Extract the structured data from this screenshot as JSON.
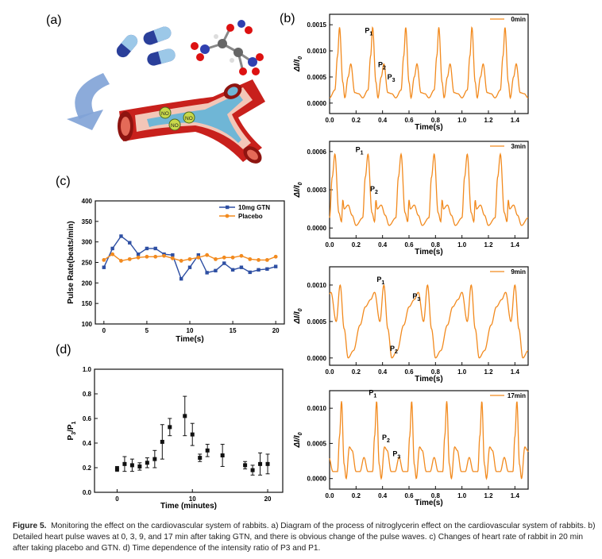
{
  "panel_labels": {
    "a": "(a)",
    "b": "(b)",
    "c": "(c)",
    "d": "(d)"
  },
  "illustration": {
    "no_labels": [
      "NO",
      "NO",
      "NO"
    ]
  },
  "caption": {
    "label": "Figure 5.",
    "text": "Monitoring the effect on the cardiovascular system of rabbits. a) Diagram of the process of nitroglycerin effect on the cardiovascular system of rabbits. b) Detailed heart pulse waves at 0, 3, 9, and 17 min after taking GTN, and there is obvious change of the pulse waves. c) Changes of heart rate of rabbit in 20 min after taking placebo and GTN. d) Time dependence of the intensity ratio of P3 and P1."
  },
  "colors": {
    "orange": "#f28a1e",
    "blue": "#2e4fa3",
    "black": "#111111"
  },
  "chart_data": [
    {
      "id": "c",
      "type": "line",
      "xlabel": "Time(s)",
      "ylabel": "Pulse Rate(beats/min)",
      "xlim": [
        -1,
        21
      ],
      "ylim": [
        100,
        400
      ],
      "xticks": [
        0,
        5,
        10,
        15,
        20
      ],
      "yticks": [
        100,
        150,
        200,
        250,
        300,
        350,
        400
      ],
      "legend_position": "top-right",
      "series": [
        {
          "name": "10mg GTN",
          "color": "#2e4fa3",
          "marker": "square",
          "x": [
            0,
            1,
            2,
            3,
            4,
            5,
            6,
            7,
            8,
            9,
            10,
            11,
            12,
            13,
            14,
            15,
            16,
            17,
            18,
            19,
            20
          ],
          "y": [
            238,
            284,
            314,
            298,
            270,
            284,
            284,
            270,
            268,
            210,
            238,
            268,
            225,
            230,
            248,
            232,
            238,
            226,
            232,
            234,
            240
          ]
        },
        {
          "name": "Placebo",
          "color": "#f28a1e",
          "marker": "circle",
          "x": [
            0,
            1,
            2,
            3,
            4,
            5,
            6,
            7,
            8,
            9,
            10,
            11,
            12,
            13,
            14,
            15,
            16,
            17,
            18,
            19,
            20
          ],
          "y": [
            256,
            270,
            254,
            258,
            262,
            264,
            264,
            266,
            260,
            254,
            258,
            262,
            268,
            258,
            262,
            262,
            266,
            258,
            256,
            256,
            264
          ]
        }
      ]
    },
    {
      "id": "d",
      "type": "scatter",
      "xlabel": "Time (minutes)",
      "ylabel": "P3/P1",
      "xlim": [
        -3,
        22
      ],
      "ylim": [
        0,
        1.0
      ],
      "xticks": [
        0,
        10,
        20
      ],
      "yticks": [
        0.0,
        0.2,
        0.4,
        0.6,
        0.8,
        1.0
      ],
      "series": [
        {
          "color": "#111111",
          "marker": "square",
          "x": [
            0,
            1,
            2,
            3,
            4,
            5,
            6,
            7,
            9,
            10,
            11,
            12,
            14,
            17,
            18,
            19,
            20
          ],
          "y": [
            0.19,
            0.23,
            0.22,
            0.21,
            0.24,
            0.27,
            0.41,
            0.53,
            0.62,
            0.47,
            0.28,
            0.34,
            0.3,
            0.22,
            0.18,
            0.23,
            0.23
          ],
          "err": [
            0.02,
            0.06,
            0.05,
            0.03,
            0.04,
            0.07,
            0.14,
            0.07,
            0.16,
            0.09,
            0.03,
            0.05,
            0.09,
            0.03,
            0.04,
            0.09,
            0.08
          ]
        }
      ]
    },
    {
      "id": "b0",
      "type": "line",
      "legend": "0min",
      "xlabel": "Time(s)",
      "ylabel": "ΔI/I0",
      "xlim": [
        0,
        1.5
      ],
      "ylim": [
        -0.0002,
        0.0017
      ],
      "xticks": [
        0.0,
        0.2,
        0.4,
        0.6,
        0.8,
        1.0,
        1.2,
        1.4
      ],
      "yticks": [
        0.0,
        0.0005,
        0.001,
        0.0015
      ],
      "ytick_labels": [
        "0.0000",
        "0.0005",
        "0.0010",
        "0.0015"
      ],
      "peaks": [
        {
          "label": "P1",
          "x": 0.29,
          "y": 0.00125
        },
        {
          "label": "P2",
          "x": 0.39,
          "y": 0.0006
        },
        {
          "label": "P3",
          "x": 0.46,
          "y": 0.00036
        }
      ],
      "period": 0.25,
      "first_beat": 0.04,
      "beat_shape": [
        [
          0,
          0.00025
        ],
        [
          0.02,
          0.0009
        ],
        [
          0.035,
          0.00145
        ],
        [
          0.06,
          0.0004
        ],
        [
          0.075,
          0.0001
        ],
        [
          0.1,
          0.0005
        ],
        [
          0.12,
          0.00075
        ],
        [
          0.15,
          0.0002
        ],
        [
          0.18,
          0.00018
        ],
        [
          0.21,
          0.0001
        ],
        [
          0.25,
          0.00025
        ]
      ]
    },
    {
      "id": "b3",
      "type": "line",
      "legend": "3min",
      "xlabel": "Time(s)",
      "ylabel": "ΔI/I0",
      "xlim": [
        0,
        1.5
      ],
      "ylim": [
        -8e-05,
        0.00068
      ],
      "xticks": [
        0.0,
        0.2,
        0.4,
        0.6,
        0.8,
        1.0,
        1.2,
        1.4
      ],
      "yticks": [
        0.0,
        0.0003,
        0.0006
      ],
      "ytick_labels": [
        "0.0000",
        "0.0003",
        "0.0006"
      ],
      "peaks": [
        {
          "label": "P1",
          "x": 0.22,
          "y": 0.00056
        },
        {
          "label": "P2",
          "x": 0.33,
          "y": 0.00025
        }
      ],
      "period": 0.25,
      "first_beat": 0.0,
      "beat_shape": [
        [
          0,
          8e-05
        ],
        [
          0.02,
          0.0004
        ],
        [
          0.04,
          0.00058
        ],
        [
          0.07,
          0.00012
        ],
        [
          0.09,
          5e-05
        ],
        [
          0.1,
          0.00022
        ],
        [
          0.11,
          0.00015
        ],
        [
          0.14,
          0.00018
        ],
        [
          0.17,
          0.0001
        ],
        [
          0.2,
          2e-05
        ],
        [
          0.25,
          8e-05
        ]
      ]
    },
    {
      "id": "b9",
      "type": "line",
      "legend": "9min",
      "xlabel": "Time(s)",
      "ylabel": "ΔI/I0",
      "xlim": [
        0,
        1.5
      ],
      "ylim": [
        -0.0001,
        0.00125
      ],
      "xticks": [
        0.0,
        0.2,
        0.4,
        0.6,
        0.8,
        1.0,
        1.2,
        1.4
      ],
      "yticks": [
        0.0,
        0.0005,
        0.001
      ],
      "ytick_labels": [
        "0.0000",
        "0.0005",
        "0.0010"
      ],
      "peaks": [
        {
          "label": "P1",
          "x": 0.38,
          "y": 0.00098
        },
        {
          "label": "P2",
          "x": 0.48,
          "y": 3e-05
        },
        {
          "label": "P3",
          "x": 0.65,
          "y": 0.00075
        }
      ],
      "period": 0.33,
      "first_beat": 0.05,
      "beat_shape": [
        [
          0,
          0.0005
        ],
        [
          0.03,
          0.001
        ],
        [
          0.06,
          0.0004
        ],
        [
          0.09,
          0.0
        ],
        [
          0.13,
          0.0001
        ],
        [
          0.18,
          0.00045
        ],
        [
          0.22,
          0.0007
        ],
        [
          0.26,
          0.0008
        ],
        [
          0.29,
          0.0009
        ],
        [
          0.33,
          0.0005
        ]
      ]
    },
    {
      "id": "b17",
      "type": "line",
      "legend": "17min",
      "xlabel": "Time(s)",
      "ylabel": "ΔI/I0",
      "xlim": [
        0,
        1.5
      ],
      "ylim": [
        -0.00015,
        0.00125
      ],
      "xticks": [
        0.0,
        0.2,
        0.4,
        0.6,
        0.8,
        1.0,
        1.2,
        1.4
      ],
      "yticks": [
        0.0,
        0.0005,
        0.001
      ],
      "ytick_labels": [
        "0.0000",
        "0.0005",
        "0.0010"
      ],
      "peaks": [
        {
          "label": "P1",
          "x": 0.32,
          "y": 0.00112
        },
        {
          "label": "P2",
          "x": 0.42,
          "y": 0.00048
        },
        {
          "label": "P3",
          "x": 0.5,
          "y": 0.00025
        }
      ],
      "period": 0.265,
      "first_beat": 0.06,
      "beat_shape": [
        [
          0,
          0.0001
        ],
        [
          0.015,
          0.0006
        ],
        [
          0.03,
          0.0011
        ],
        [
          0.05,
          0.0002
        ],
        [
          0.065,
          0.0
        ],
        [
          0.09,
          0.00045
        ],
        [
          0.11,
          0.0004
        ],
        [
          0.14,
          0.0001
        ],
        [
          0.17,
          0.0001
        ],
        [
          0.2,
          0.0003
        ],
        [
          0.23,
          0.0001
        ],
        [
          0.265,
          0.0001
        ]
      ]
    }
  ]
}
